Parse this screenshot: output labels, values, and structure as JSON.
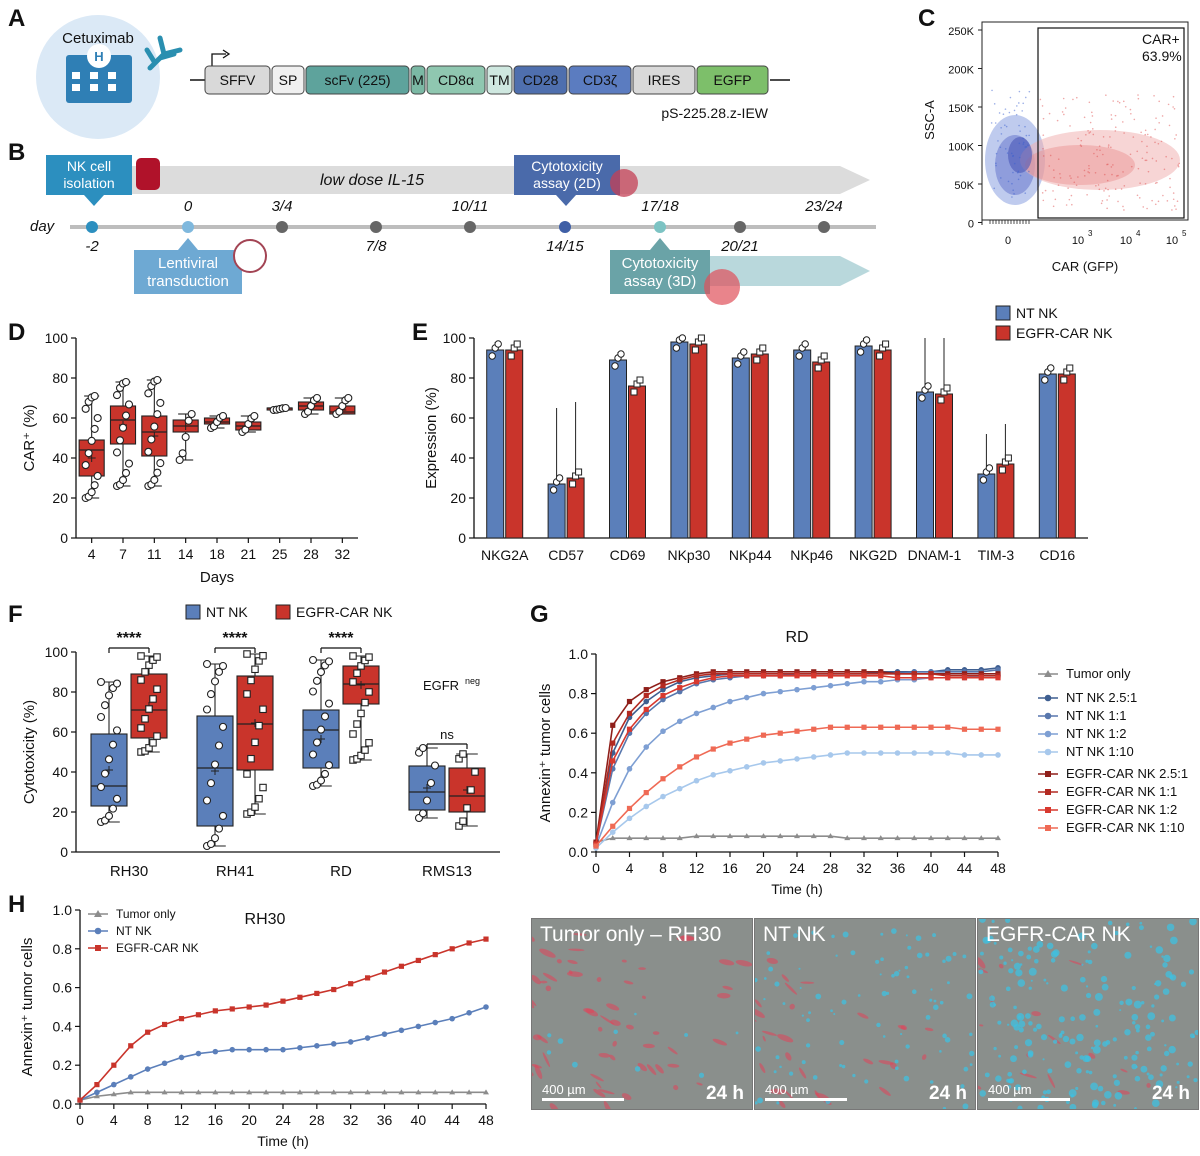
{
  "panels": {
    "A": "A",
    "B": "B",
    "C": "C",
    "D": "D",
    "E": "E",
    "F": "F",
    "G": "G",
    "H": "H"
  },
  "panelA": {
    "drug": "Cetuximab",
    "construct": "pS-225.28.z-IEW",
    "segments": [
      {
        "label": "SFFV",
        "color": "#d9d9d9"
      },
      {
        "label": "SP",
        "color": "#f0f0f0"
      },
      {
        "label": "scFv (225)",
        "color": "#5ea39c"
      },
      {
        "label": "M",
        "color": "#7bb8a4"
      },
      {
        "label": "CD8α",
        "color": "#8fc7b0"
      },
      {
        "label": "TM",
        "color": "#cfe8e0"
      },
      {
        "label": "CD28",
        "color": "#4f6fae"
      },
      {
        "label": "CD3ζ",
        "color": "#5b7cc0"
      },
      {
        "label": "IRES",
        "color": "#d9d9d9"
      },
      {
        "label": "EGFP",
        "color": "#7dbf6a"
      }
    ]
  },
  "panelB": {
    "box1": [
      "NK cell",
      "isolation"
    ],
    "il15": "low dose IL-15",
    "box2": [
      "Cytotoxicity",
      "assay (2D)"
    ],
    "box3": [
      "Lentiviral",
      "transduction"
    ],
    "box4": [
      "Cytotoxicity",
      "assay (3D)"
    ],
    "day": "day",
    "timepoints_top": [
      "0",
      "3/4",
      "10/11",
      "17/18",
      "23/24"
    ],
    "timepoints_bottom": [
      "-2",
      "7/8",
      "14/15",
      "20/21"
    ]
  },
  "panelC": {
    "gate": "CAR+",
    "percent": "63.9%",
    "xlabel": "CAR (GFP)",
    "ylabel": "SSC-A",
    "yticks": [
      "250K",
      "200K",
      "150K",
      "100K",
      "50K",
      "0"
    ],
    "xticks": [
      "0",
      "10",
      "10",
      "10"
    ],
    "xexp": [
      "3",
      "4",
      "5"
    ]
  },
  "chart_data": [
    {
      "panel": "D",
      "type": "box",
      "title": "",
      "xlabel": "Days",
      "ylabel": "CAR⁺ (%)",
      "ylim": [
        0,
        100
      ],
      "yticks": [
        "0",
        "20",
        "40",
        "60",
        "80",
        "100"
      ],
      "categories": [
        "4",
        "7",
        "11",
        "14",
        "18",
        "21",
        "25",
        "28",
        "32"
      ],
      "boxes": [
        {
          "min": 20,
          "q1": 31,
          "median": 44,
          "q3": 49,
          "max": 71
        },
        {
          "min": 26,
          "q1": 47,
          "median": 59,
          "q3": 66,
          "max": 78
        },
        {
          "min": 26,
          "q1": 41,
          "median": 53,
          "q3": 61,
          "max": 79
        },
        {
          "min": 39,
          "q1": 53,
          "median": 56,
          "q3": 59,
          "max": 62
        },
        {
          "min": 55,
          "q1": 57,
          "median": 58,
          "q3": 60,
          "max": 61
        },
        {
          "min": 53,
          "q1": 54,
          "median": 56,
          "q3": 58,
          "max": 61
        },
        {
          "min": 64,
          "q1": 64,
          "median": 65,
          "q3": 65,
          "max": 65
        },
        {
          "min": 62,
          "q1": 64,
          "median": 66,
          "q3": 68,
          "max": 70
        },
        {
          "min": 62,
          "q1": 62,
          "median": 63,
          "q3": 66,
          "max": 70
        }
      ]
    },
    {
      "panel": "E",
      "type": "bar",
      "xlabel": "",
      "ylabel": "Expression (%)",
      "ylim": [
        0,
        100
      ],
      "yticks": [
        "0",
        "20",
        "40",
        "60",
        "80",
        "100"
      ],
      "categories": [
        "NKG2A",
        "CD57",
        "CD69",
        "NKp30",
        "NKp44",
        "NKp46",
        "NKG2D",
        "DNAM-1",
        "TIM-3",
        "CD16"
      ],
      "series": [
        {
          "name": "NT NK",
          "color": "#5b7fba",
          "values": [
            94,
            27,
            89,
            98,
            90,
            94,
            96,
            73,
            32,
            82
          ]
        },
        {
          "name": "EGFR-CAR NK",
          "color": "#c9342b",
          "values": [
            94,
            30,
            76,
            97,
            92,
            88,
            94,
            72,
            37,
            82
          ]
        }
      ]
    },
    {
      "panel": "F",
      "type": "box",
      "xlabel": "",
      "ylabel": "Cytotoxicity (%)",
      "ylim": [
        0,
        100
      ],
      "yticks": [
        "0",
        "20",
        "40",
        "60",
        "80",
        "100"
      ],
      "categories": [
        "RH30",
        "RH41",
        "RD",
        "RMS13"
      ],
      "significance": [
        "****",
        "****",
        "****",
        "ns"
      ],
      "annotation": "EGFR",
      "annotation_sup": "neg",
      "series": [
        {
          "name": "NT NK",
          "color": "#5b7fba",
          "boxes": [
            {
              "min": 15,
              "q1": 23,
              "median": 33,
              "q3": 59,
              "max": 85
            },
            {
              "min": 3,
              "q1": 13,
              "median": 42,
              "q3": 68,
              "max": 94
            },
            {
              "min": 33,
              "q1": 42,
              "median": 61,
              "q3": 71,
              "max": 96
            },
            {
              "min": 17,
              "q1": 21,
              "median": 30,
              "q3": 43,
              "max": 52
            }
          ]
        },
        {
          "name": "EGFR-CAR NK",
          "color": "#c9342b",
          "boxes": [
            {
              "min": 50,
              "q1": 57,
              "median": 71,
              "q3": 89,
              "max": 98
            },
            {
              "min": 19,
              "q1": 41,
              "median": 64,
              "q3": 88,
              "max": 99
            },
            {
              "min": 46,
              "q1": 74,
              "median": 84,
              "q3": 93,
              "max": 98
            },
            {
              "min": 13,
              "q1": 20,
              "median": 28,
              "q3": 42,
              "max": 49
            }
          ]
        }
      ]
    },
    {
      "panel": "G",
      "type": "line",
      "title": "RD",
      "xlabel": "Time (h)",
      "ylabel": "Annexin⁺ tumor cells",
      "xlim": [
        0,
        48
      ],
      "ylim": [
        0,
        1
      ],
      "xticks": [
        "0",
        "4",
        "8",
        "12",
        "16",
        "20",
        "24",
        "28",
        "32",
        "36",
        "40",
        "44",
        "48"
      ],
      "yticks": [
        "0.0",
        "0.2",
        "0.4",
        "0.6",
        "0.8",
        "1.0"
      ],
      "x": [
        0,
        2,
        4,
        6,
        8,
        10,
        12,
        14,
        16,
        18,
        20,
        22,
        24,
        26,
        28,
        30,
        32,
        34,
        36,
        38,
        40,
        42,
        44,
        46,
        48
      ],
      "series": [
        {
          "name": "Tumor only",
          "color": "#8c8c8c",
          "marker": "triangle",
          "values": [
            0.05,
            0.07,
            0.07,
            0.07,
            0.07,
            0.07,
            0.08,
            0.08,
            0.08,
            0.08,
            0.08,
            0.08,
            0.08,
            0.08,
            0.08,
            0.07,
            0.07,
            0.07,
            0.07,
            0.07,
            0.07,
            0.07,
            0.07,
            0.07,
            0.07
          ]
        },
        {
          "name": "NT NK 2.5:1",
          "color": "#3f5f91",
          "marker": "circle",
          "values": [
            0.05,
            0.5,
            0.68,
            0.76,
            0.82,
            0.86,
            0.88,
            0.89,
            0.9,
            0.9,
            0.9,
            0.9,
            0.9,
            0.9,
            0.9,
            0.9,
            0.9,
            0.91,
            0.91,
            0.91,
            0.91,
            0.92,
            0.92,
            0.92,
            0.93
          ]
        },
        {
          "name": "NT NK 1:1",
          "color": "#5877ad",
          "marker": "circle",
          "values": [
            0.04,
            0.42,
            0.6,
            0.7,
            0.77,
            0.81,
            0.85,
            0.87,
            0.88,
            0.89,
            0.89,
            0.89,
            0.9,
            0.9,
            0.9,
            0.9,
            0.9,
            0.9,
            0.9,
            0.91,
            0.91,
            0.91,
            0.91,
            0.91,
            0.92
          ]
        },
        {
          "name": "NT NK 1:2",
          "color": "#7e9fd3",
          "marker": "circle",
          "values": [
            0.03,
            0.25,
            0.42,
            0.53,
            0.61,
            0.66,
            0.7,
            0.73,
            0.76,
            0.78,
            0.8,
            0.81,
            0.82,
            0.83,
            0.84,
            0.85,
            0.86,
            0.86,
            0.87,
            0.87,
            0.88,
            0.88,
            0.88,
            0.89,
            0.89
          ]
        },
        {
          "name": "NT NK 1:10",
          "color": "#a7c8ec",
          "marker": "circle",
          "values": [
            0.02,
            0.1,
            0.17,
            0.23,
            0.28,
            0.32,
            0.36,
            0.39,
            0.41,
            0.43,
            0.45,
            0.46,
            0.47,
            0.48,
            0.49,
            0.5,
            0.5,
            0.5,
            0.5,
            0.5,
            0.5,
            0.5,
            0.49,
            0.49,
            0.49
          ]
        },
        {
          "name": "EGFR-CAR NK 2.5:1",
          "color": "#8f1f1a",
          "marker": "square",
          "values": [
            0.05,
            0.64,
            0.76,
            0.82,
            0.86,
            0.88,
            0.9,
            0.91,
            0.91,
            0.91,
            0.91,
            0.91,
            0.91,
            0.91,
            0.91,
            0.91,
            0.91,
            0.91,
            0.9,
            0.9,
            0.9,
            0.9,
            0.9,
            0.9,
            0.9
          ]
        },
        {
          "name": "EGFR-CAR NK 1:1",
          "color": "#b32a22",
          "marker": "square",
          "values": [
            0.04,
            0.55,
            0.7,
            0.79,
            0.84,
            0.87,
            0.89,
            0.9,
            0.9,
            0.9,
            0.9,
            0.9,
            0.9,
            0.9,
            0.9,
            0.9,
            0.9,
            0.9,
            0.9,
            0.9,
            0.9,
            0.89,
            0.89,
            0.89,
            0.89
          ]
        },
        {
          "name": "EGFR-CAR NK 1:2",
          "color": "#d8392f",
          "marker": "square",
          "values": [
            0.04,
            0.46,
            0.62,
            0.72,
            0.79,
            0.83,
            0.86,
            0.88,
            0.89,
            0.89,
            0.89,
            0.89,
            0.89,
            0.89,
            0.89,
            0.89,
            0.89,
            0.89,
            0.88,
            0.88,
            0.88,
            0.88,
            0.88,
            0.88,
            0.88
          ]
        },
        {
          "name": "EGFR-CAR NK 1:10",
          "color": "#ef6a55",
          "marker": "square",
          "values": [
            0.03,
            0.13,
            0.22,
            0.3,
            0.37,
            0.43,
            0.48,
            0.52,
            0.55,
            0.57,
            0.59,
            0.6,
            0.61,
            0.62,
            0.63,
            0.63,
            0.63,
            0.63,
            0.63,
            0.63,
            0.63,
            0.63,
            0.62,
            0.62,
            0.62
          ]
        }
      ]
    },
    {
      "panel": "H",
      "type": "line",
      "title": "RH30",
      "xlabel": "Time (h)",
      "ylabel": "Annexin⁺ tumor cells",
      "xlim": [
        0,
        48
      ],
      "ylim": [
        0,
        1
      ],
      "xticks": [
        "0",
        "4",
        "8",
        "12",
        "16",
        "20",
        "24",
        "28",
        "32",
        "36",
        "40",
        "44",
        "48"
      ],
      "yticks": [
        "0.0",
        "0.2",
        "0.4",
        "0.6",
        "0.8",
        "1.0"
      ],
      "x": [
        0,
        2,
        4,
        6,
        8,
        10,
        12,
        14,
        16,
        18,
        20,
        22,
        24,
        26,
        28,
        30,
        32,
        34,
        36,
        38,
        40,
        42,
        44,
        46,
        48
      ],
      "series": [
        {
          "name": "Tumor only",
          "color": "#8c8c8c",
          "marker": "triangle",
          "values": [
            0.02,
            0.04,
            0.05,
            0.06,
            0.06,
            0.06,
            0.06,
            0.06,
            0.06,
            0.06,
            0.06,
            0.06,
            0.06,
            0.06,
            0.06,
            0.06,
            0.06,
            0.06,
            0.06,
            0.06,
            0.06,
            0.06,
            0.06,
            0.06,
            0.06
          ]
        },
        {
          "name": "NT NK",
          "color": "#5b7fba",
          "marker": "circle",
          "values": [
            0.02,
            0.06,
            0.1,
            0.14,
            0.18,
            0.21,
            0.24,
            0.26,
            0.27,
            0.28,
            0.28,
            0.28,
            0.28,
            0.29,
            0.3,
            0.31,
            0.32,
            0.34,
            0.36,
            0.38,
            0.4,
            0.42,
            0.44,
            0.47,
            0.5
          ]
        },
        {
          "name": "EGFR-CAR NK",
          "color": "#c9342b",
          "marker": "square",
          "values": [
            0.02,
            0.1,
            0.2,
            0.3,
            0.37,
            0.41,
            0.44,
            0.46,
            0.48,
            0.49,
            0.5,
            0.51,
            0.53,
            0.55,
            0.57,
            0.59,
            0.62,
            0.65,
            0.68,
            0.71,
            0.74,
            0.77,
            0.8,
            0.83,
            0.85
          ]
        }
      ]
    }
  ],
  "micrographs": [
    {
      "label": "Tumor only – RH30",
      "scale": "400 µm",
      "time": "24 h"
    },
    {
      "label": "NT NK",
      "scale": "400 µm",
      "time": "24 h"
    },
    {
      "label": "EGFR-CAR NK",
      "scale": "400 µm",
      "time": "24 h"
    }
  ]
}
